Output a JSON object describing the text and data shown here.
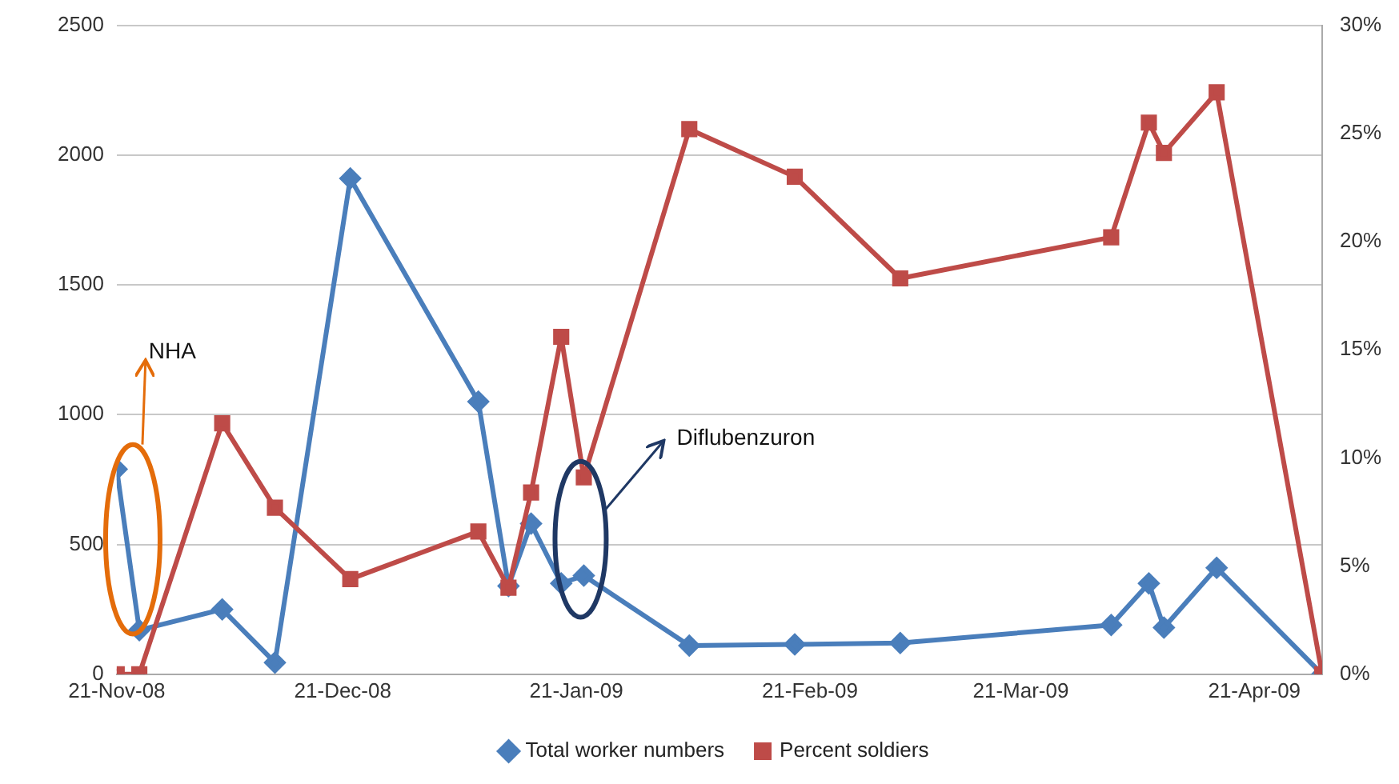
{
  "chart_data": {
    "type": "line",
    "legend": "bottom",
    "grid": "y",
    "xlim": [
      "2008-11-21",
      "2009-04-30"
    ],
    "xticks": [
      {
        "value": "2008-11-21",
        "label": "21-Nov-08"
      },
      {
        "value": "2008-12-21",
        "label": "21-Dec-08"
      },
      {
        "value": "2009-01-21",
        "label": "21-Jan-09"
      },
      {
        "value": "2009-02-21",
        "label": "21-Feb-09"
      },
      {
        "value": "2009-03-21",
        "label": "21-Mar-09"
      },
      {
        "value": "2009-04-21",
        "label": "21-Apr-09"
      }
    ],
    "ylim": [
      0,
      2500
    ],
    "yticks": [
      0,
      500,
      1000,
      1500,
      2000,
      2500
    ],
    "y2lim": [
      0,
      30
    ],
    "y2ticks": [
      {
        "value": 0,
        "label": "0%"
      },
      {
        "value": 5,
        "label": "5%"
      },
      {
        "value": 10,
        "label": "10%"
      },
      {
        "value": 15,
        "label": "15%"
      },
      {
        "value": 20,
        "label": "20%"
      },
      {
        "value": 25,
        "label": "25%"
      },
      {
        "value": 30,
        "label": "30%"
      }
    ],
    "annotations": [
      "NHA",
      "Diflubenzuron"
    ],
    "series": [
      {
        "name": "Total worker numbers",
        "color": "#4a7ebb",
        "marker": "diamond",
        "x": [
          "2008-11-21",
          "2008-11-24",
          "2008-12-05",
          "2008-12-12",
          "2008-12-22",
          "2009-01-08",
          "2009-01-12",
          "2009-01-15",
          "2009-01-19",
          "2009-01-22",
          "2009-02-05",
          "2009-02-19",
          "2009-03-05",
          "2009-04-02",
          "2009-04-07",
          "2009-04-09",
          "2009-04-16",
          "2009-04-30"
        ],
        "values": [
          790,
          170,
          250,
          45,
          1910,
          1050,
          340,
          580,
          350,
          380,
          110,
          115,
          120,
          190,
          350,
          180,
          410,
          0
        ]
      },
      {
        "name": "Percent soldiers",
        "color": "#be4b48",
        "marker": "square",
        "axis": "y2",
        "x": [
          "2008-11-21",
          "2008-11-24",
          "2008-12-05",
          "2008-12-12",
          "2008-12-22",
          "2009-01-08",
          "2009-01-12",
          "2009-01-15",
          "2009-01-19",
          "2009-01-22",
          "2009-02-05",
          "2009-02-19",
          "2009-03-05",
          "2009-04-02",
          "2009-04-07",
          "2009-04-09",
          "2009-04-16",
          "2009-04-30"
        ],
        "values": [
          0,
          0,
          11.6,
          7.7,
          4.4,
          6.6,
          4.0,
          8.4,
          15.6,
          9.1,
          25.2,
          23.0,
          18.3,
          20.2,
          25.5,
          24.1,
          26.9,
          0
        ]
      }
    ]
  }
}
